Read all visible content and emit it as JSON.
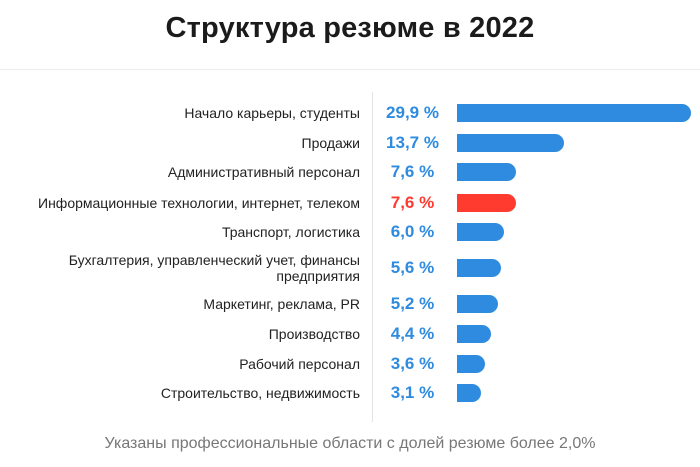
{
  "title": "Структура резюме в 2022",
  "footnote": "Указаны профессиональные области с долей резюме более 2,0%",
  "colors": {
    "default_bar": "#2e8be0",
    "highlight_bar": "#ff3b30",
    "default_value": "#2e8be0",
    "highlight_value": "#ff3b30"
  },
  "chart_data": {
    "type": "bar",
    "orientation": "horizontal",
    "title": "Структура резюме в 2022",
    "xlabel": "",
    "ylabel": "",
    "xlim": [
      0,
      29.9
    ],
    "grid": false,
    "legend": "none",
    "categories": [
      "Начало карьеры, студенты",
      "Продажи",
      "Административный персонал",
      "Информационные технологии, интернет, телеком",
      "Транспорт, логистика",
      "Бухгалтерия, управленческий учет, финансы предприятия",
      "Маркетинг, реклама, PR",
      "Производство",
      "Рабочий персонал",
      "Строительство, недвижимость"
    ],
    "values": [
      29.9,
      13.7,
      7.6,
      7.6,
      6.0,
      5.6,
      5.2,
      4.4,
      3.6,
      3.1
    ],
    "value_labels": [
      "29,9 %",
      "13,7 %",
      "7,6 %",
      "7,6 %",
      "6,0 %",
      "5,6 %",
      "5,2 %",
      "4,4 %",
      "3,6 %",
      "3,1 %"
    ],
    "highlighted_index": 3
  }
}
